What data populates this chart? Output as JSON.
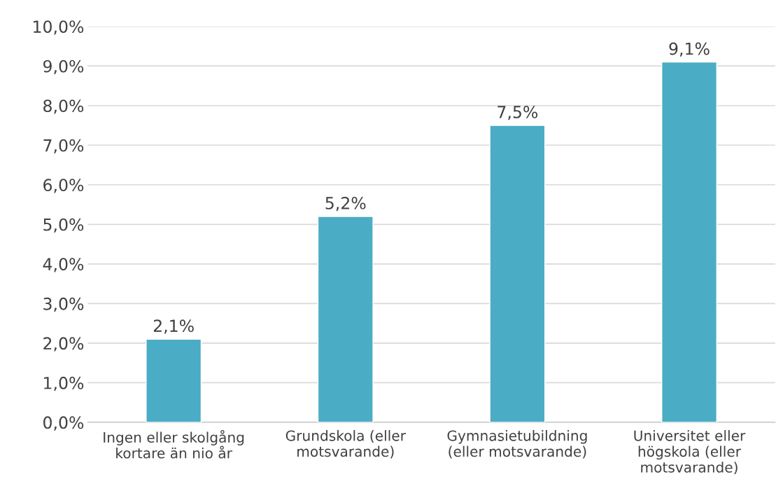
{
  "chart_data": {
    "type": "bar",
    "categories": [
      "Ingen eller skolgång\nkortare än nio år",
      "Grundskola (eller\nmotsvarande)",
      "Gymnasietubildning\n(eller motsvarande)",
      "Universitet eller\nhögskola (eller\nmotsvarande)"
    ],
    "values": [
      2.1,
      5.2,
      7.5,
      9.1
    ],
    "value_labels": [
      "2,1%",
      "5,2%",
      "7,5%",
      "9,1%"
    ],
    "color": "#4bacc6",
    "ylim": [
      0,
      10
    ],
    "yticks": [
      {
        "value": 0,
        "label": "0,0%"
      },
      {
        "value": 1,
        "label": "1,0%"
      },
      {
        "value": 2,
        "label": "2,0%"
      },
      {
        "value": 3,
        "label": "3,0%"
      },
      {
        "value": 4,
        "label": "4,0%"
      },
      {
        "value": 5,
        "label": "5,0%"
      },
      {
        "value": 6,
        "label": "6,0%"
      },
      {
        "value": 7,
        "label": "7,0%"
      },
      {
        "value": 8,
        "label": "8,0%"
      },
      {
        "value": 9,
        "label": "9,0%"
      },
      {
        "value": 10,
        "label": "10,0%"
      }
    ],
    "grid": "y"
  }
}
